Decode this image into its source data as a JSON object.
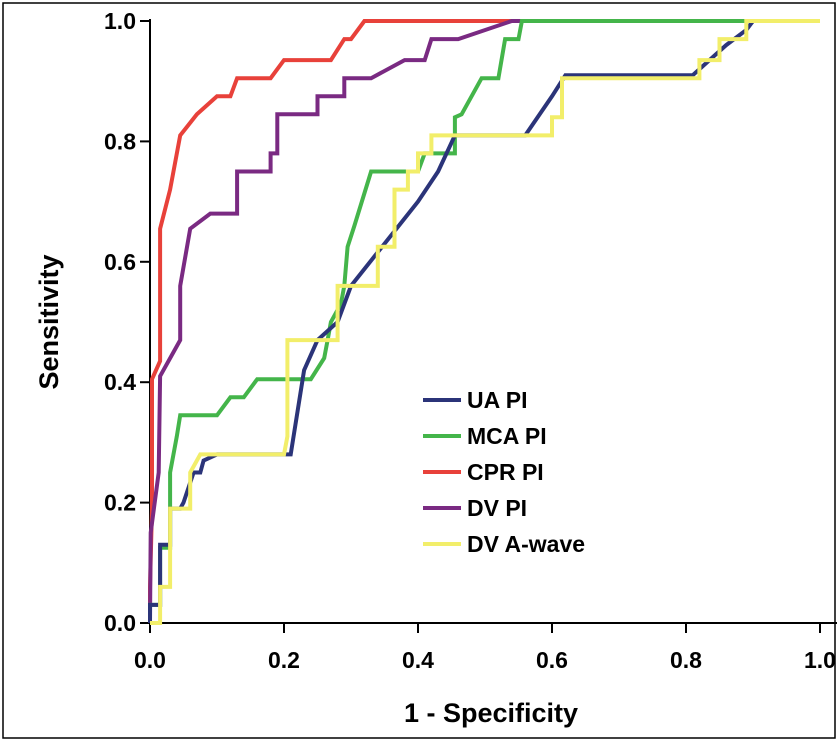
{
  "chart_data": {
    "type": "line",
    "title": "",
    "xlabel": "1 - Specificity",
    "ylabel": "Sensitivity",
    "xlim": [
      0,
      1
    ],
    "ylim": [
      0,
      1
    ],
    "x_ticks": [
      "0.0",
      "0.2",
      "0.4",
      "0.6",
      "0.8",
      "1.0"
    ],
    "y_ticks": [
      "0.0",
      "0.2",
      "0.4",
      "0.6",
      "0.8",
      "1.0"
    ],
    "grid": false,
    "legend_position": "center",
    "series": [
      {
        "name": "UA PI",
        "color": "#2b3479",
        "points": [
          [
            0,
            0
          ],
          [
            0,
            0.03
          ],
          [
            0.015,
            0.03
          ],
          [
            0.015,
            0.13
          ],
          [
            0.03,
            0.13
          ],
          [
            0.03,
            0.19
          ],
          [
            0.045,
            0.19
          ],
          [
            0.05,
            0.2
          ],
          [
            0.065,
            0.25
          ],
          [
            0.075,
            0.25
          ],
          [
            0.08,
            0.27
          ],
          [
            0.1,
            0.28
          ],
          [
            0.19,
            0.28
          ],
          [
            0.2,
            0.28
          ],
          [
            0.21,
            0.28
          ],
          [
            0.23,
            0.42
          ],
          [
            0.25,
            0.47
          ],
          [
            0.28,
            0.5
          ],
          [
            0.3,
            0.56
          ],
          [
            0.35,
            0.63
          ],
          [
            0.4,
            0.7
          ],
          [
            0.43,
            0.75
          ],
          [
            0.455,
            0.81
          ],
          [
            0.56,
            0.81
          ],
          [
            0.6,
            0.875
          ],
          [
            0.62,
            0.91
          ],
          [
            0.81,
            0.91
          ],
          [
            0.84,
            0.94
          ],
          [
            0.86,
            0.96
          ],
          [
            0.89,
            0.985
          ],
          [
            0.9,
            1
          ],
          [
            1,
            1
          ]
        ]
      },
      {
        "name": "MCA PI",
        "color": "#44b54a",
        "points": [
          [
            0,
            0
          ],
          [
            0,
            0.03
          ],
          [
            0.015,
            0.03
          ],
          [
            0.015,
            0.125
          ],
          [
            0.03,
            0.125
          ],
          [
            0.03,
            0.25
          ],
          [
            0.04,
            0.31
          ],
          [
            0.045,
            0.345
          ],
          [
            0.1,
            0.345
          ],
          [
            0.12,
            0.375
          ],
          [
            0.14,
            0.375
          ],
          [
            0.16,
            0.405
          ],
          [
            0.2,
            0.405
          ],
          [
            0.24,
            0.405
          ],
          [
            0.26,
            0.44
          ],
          [
            0.265,
            0.47
          ],
          [
            0.27,
            0.5
          ],
          [
            0.285,
            0.53
          ],
          [
            0.29,
            0.56
          ],
          [
            0.295,
            0.625
          ],
          [
            0.305,
            0.66
          ],
          [
            0.33,
            0.75
          ],
          [
            0.4,
            0.75
          ],
          [
            0.41,
            0.78
          ],
          [
            0.455,
            0.78
          ],
          [
            0.455,
            0.84
          ],
          [
            0.465,
            0.845
          ],
          [
            0.495,
            0.905
          ],
          [
            0.52,
            0.905
          ],
          [
            0.53,
            0.97
          ],
          [
            0.55,
            0.97
          ],
          [
            0.555,
            1
          ],
          [
            1,
            1
          ]
        ]
      },
      {
        "name": "CPR PI",
        "color": "#e8413a",
        "points": [
          [
            0,
            0
          ],
          [
            0,
            0.06
          ],
          [
            0.003,
            0.19
          ],
          [
            0.003,
            0.405
          ],
          [
            0.015,
            0.435
          ],
          [
            0.015,
            0.655
          ],
          [
            0.03,
            0.72
          ],
          [
            0.045,
            0.81
          ],
          [
            0.07,
            0.845
          ],
          [
            0.1,
            0.875
          ],
          [
            0.12,
            0.875
          ],
          [
            0.13,
            0.905
          ],
          [
            0.18,
            0.905
          ],
          [
            0.2,
            0.935
          ],
          [
            0.27,
            0.935
          ],
          [
            0.29,
            0.97
          ],
          [
            0.3,
            0.97
          ],
          [
            0.32,
            1
          ],
          [
            1,
            1
          ]
        ]
      },
      {
        "name": "DV PI",
        "color": "#7a2a82",
        "points": [
          [
            0,
            0
          ],
          [
            0.001,
            0.15
          ],
          [
            0.013,
            0.25
          ],
          [
            0.015,
            0.41
          ],
          [
            0.045,
            0.47
          ],
          [
            0.045,
            0.56
          ],
          [
            0.06,
            0.655
          ],
          [
            0.09,
            0.68
          ],
          [
            0.13,
            0.68
          ],
          [
            0.13,
            0.75
          ],
          [
            0.18,
            0.75
          ],
          [
            0.18,
            0.78
          ],
          [
            0.19,
            0.78
          ],
          [
            0.19,
            0.845
          ],
          [
            0.25,
            0.845
          ],
          [
            0.25,
            0.875
          ],
          [
            0.29,
            0.875
          ],
          [
            0.29,
            0.905
          ],
          [
            0.33,
            0.905
          ],
          [
            0.38,
            0.935
          ],
          [
            0.41,
            0.935
          ],
          [
            0.42,
            0.97
          ],
          [
            0.46,
            0.97
          ],
          [
            0.54,
            1
          ],
          [
            1,
            1
          ]
        ]
      },
      {
        "name": "DV A-wave",
        "color": "#f2ee6a",
        "points": [
          [
            0,
            0
          ],
          [
            0.015,
            0
          ],
          [
            0.015,
            0.06
          ],
          [
            0.03,
            0.06
          ],
          [
            0.03,
            0.19
          ],
          [
            0.06,
            0.19
          ],
          [
            0.06,
            0.25
          ],
          [
            0.075,
            0.28
          ],
          [
            0.2,
            0.28
          ],
          [
            0.205,
            0.31
          ],
          [
            0.205,
            0.47
          ],
          [
            0.28,
            0.47
          ],
          [
            0.28,
            0.56
          ],
          [
            0.34,
            0.56
          ],
          [
            0.34,
            0.625
          ],
          [
            0.365,
            0.625
          ],
          [
            0.365,
            0.72
          ],
          [
            0.385,
            0.72
          ],
          [
            0.385,
            0.75
          ],
          [
            0.4,
            0.75
          ],
          [
            0.4,
            0.78
          ],
          [
            0.42,
            0.78
          ],
          [
            0.42,
            0.81
          ],
          [
            0.6,
            0.81
          ],
          [
            0.6,
            0.84
          ],
          [
            0.615,
            0.84
          ],
          [
            0.615,
            0.905
          ],
          [
            0.82,
            0.905
          ],
          [
            0.82,
            0.935
          ],
          [
            0.85,
            0.935
          ],
          [
            0.85,
            0.97
          ],
          [
            0.89,
            0.97
          ],
          [
            0.89,
            1
          ],
          [
            1,
            1
          ]
        ]
      }
    ]
  }
}
